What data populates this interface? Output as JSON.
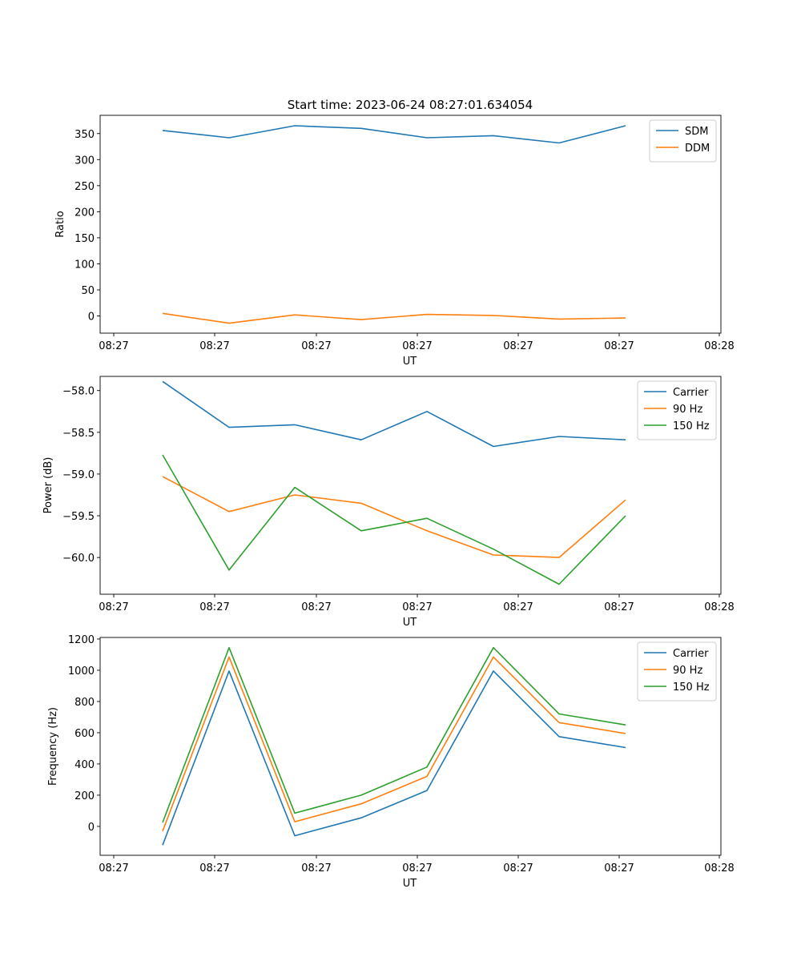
{
  "title": "Start time: 2023-06-24 08:27:01.634054",
  "chart_data": [
    {
      "type": "line",
      "xlabel": "UT",
      "ylabel": "Ratio",
      "x_tick_labels": [
        "08:27",
        "08:27",
        "08:27",
        "08:27",
        "08:27",
        "08:27",
        "08:28"
      ],
      "y_ticks": [
        0,
        50,
        100,
        150,
        200,
        250,
        300,
        350
      ],
      "y_tick_labels": [
        "0",
        "50",
        "100",
        "150",
        "200",
        "250",
        "300",
        "350"
      ],
      "ylim": [
        -33,
        385
      ],
      "legend_position": "top-right",
      "grid": false,
      "series": [
        {
          "name": "SDM",
          "color": "#1f77b4",
          "values": [
            356,
            342,
            365,
            360,
            342,
            346,
            332,
            365
          ]
        },
        {
          "name": "DDM",
          "color": "#ff7f0e",
          "values": [
            5,
            -14,
            2,
            -7,
            3,
            1,
            -6,
            -4
          ]
        }
      ]
    },
    {
      "type": "line",
      "xlabel": "UT",
      "ylabel": "Power (dB)",
      "x_tick_labels": [
        "08:27",
        "08:27",
        "08:27",
        "08:27",
        "08:27",
        "08:27",
        "08:28"
      ],
      "y_ticks": [
        -58.0,
        -58.5,
        -59.0,
        -59.5,
        -60.0
      ],
      "y_tick_labels": [
        "−58.0",
        "−58.5",
        "−59.0",
        "−59.5",
        "−60.0"
      ],
      "ylim": [
        -60.44,
        -57.83
      ],
      "legend_position": "top-right",
      "grid": false,
      "series": [
        {
          "name": "Carrier",
          "color": "#1f77b4",
          "values": [
            -57.89,
            -58.44,
            -58.41,
            -58.59,
            -58.25,
            -58.67,
            -58.55,
            -58.59
          ]
        },
        {
          "name": "90 Hz",
          "color": "#ff7f0e",
          "values": [
            -59.03,
            -59.45,
            -59.25,
            -59.35,
            -59.68,
            -59.97,
            -60.0,
            -59.31
          ]
        },
        {
          "name": "150 Hz",
          "color": "#2ca02c",
          "values": [
            -58.77,
            -60.15,
            -59.16,
            -59.68,
            -59.53,
            -59.9,
            -60.32,
            -59.5
          ]
        }
      ]
    },
    {
      "type": "line",
      "xlabel": "UT",
      "ylabel": "Frequency (Hz)",
      "x_tick_labels": [
        "08:27",
        "08:27",
        "08:27",
        "08:27",
        "08:27",
        "08:27",
        "08:28"
      ],
      "y_ticks": [
        0,
        200,
        400,
        600,
        800,
        1000,
        1200
      ],
      "y_tick_labels": [
        "0",
        "200",
        "400",
        "600",
        "800",
        "1000",
        "1200"
      ],
      "ylim": [
        -185,
        1210
      ],
      "legend_position": "top-right",
      "grid": false,
      "series": [
        {
          "name": "Carrier",
          "color": "#1f77b4",
          "values": [
            -120,
            995,
            -60,
            55,
            230,
            995,
            575,
            505
          ]
        },
        {
          "name": "90 Hz",
          "color": "#ff7f0e",
          "values": [
            -30,
            1085,
            30,
            145,
            320,
            1085,
            665,
            595
          ]
        },
        {
          "name": "150 Hz",
          "color": "#2ca02c",
          "values": [
            25,
            1145,
            85,
            200,
            380,
            1145,
            720,
            650
          ]
        }
      ]
    }
  ]
}
